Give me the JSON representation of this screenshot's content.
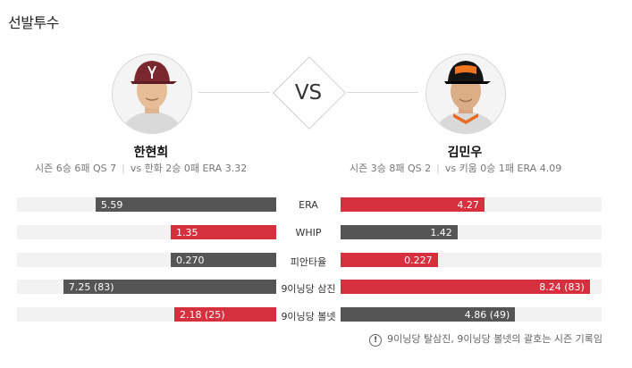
{
  "section": {
    "title": "선발투수"
  },
  "vs_label": "VS",
  "players": {
    "left": {
      "name": "한현희",
      "season": "시즌 6승 6패 QS 7",
      "vs": "vs 한화 2승 0패 ERA 3.32"
    },
    "right": {
      "name": "김민우",
      "season": "시즌 3승 8패 QS 2",
      "vs": "vs 키움 0승 1패 ERA 4.09"
    }
  },
  "comparison": [
    {
      "label": "ERA",
      "left": {
        "text": "5.59",
        "fraction": 0.697,
        "color": "#555555"
      },
      "right": {
        "text": "4.27",
        "fraction": 0.551,
        "color": "#d6303f"
      }
    },
    {
      "label": "WHIP",
      "left": {
        "text": "1.35",
        "fraction": 0.407,
        "color": "#d6303f"
      },
      "right": {
        "text": "1.42",
        "fraction": 0.448,
        "color": "#555555"
      }
    },
    {
      "label": "피안타율",
      "left": {
        "text": "0.270",
        "fraction": 0.407,
        "color": "#555555"
      },
      "right": {
        "text": "0.227",
        "fraction": 0.372,
        "color": "#d6303f"
      }
    },
    {
      "label": "9이닝당 삼진",
      "left": {
        "text": "7.25 (83)",
        "fraction": 0.821,
        "color": "#555555"
      },
      "right": {
        "text": "8.24 (83)",
        "fraction": 0.955,
        "color": "#d6303f"
      }
    },
    {
      "label": "9이닝당 볼넷",
      "left": {
        "text": "2.18 (25)",
        "fraction": 0.393,
        "color": "#d6303f"
      },
      "right": {
        "text": "4.86 (49)",
        "fraction": 0.669,
        "color": "#555555"
      }
    }
  ],
  "footnote": {
    "icon": "info-icon",
    "text": "9이닝당 탈삼진, 9이닝당 볼넷의 괄호는 시즌 기록임"
  }
}
